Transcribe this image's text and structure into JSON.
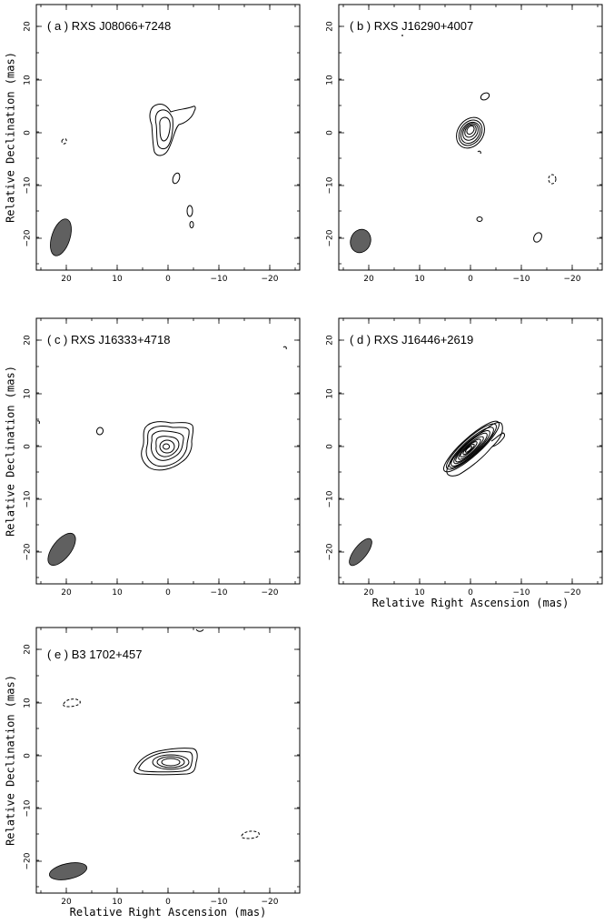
{
  "figure": {
    "x_axis_label": "Relative Right Ascension (mas)",
    "y_axis_label": "Relative Declination (mas)",
    "x_ticks": [
      "20",
      "10",
      "0",
      "−10",
      "−20"
    ],
    "y_ticks": [
      "20",
      "10",
      "0",
      "−10",
      "−20"
    ],
    "panels": [
      {
        "id": "a",
        "title": "( a )  RXS J08066+7248"
      },
      {
        "id": "b",
        "title": "( b )  RXS J16290+4007"
      },
      {
        "id": "c",
        "title": "( c )  RXS J16333+4718"
      },
      {
        "id": "d",
        "title": "( d )  RXS J16446+2619"
      },
      {
        "id": "e",
        "title": "( e )  B3 1702+457"
      }
    ]
  }
}
